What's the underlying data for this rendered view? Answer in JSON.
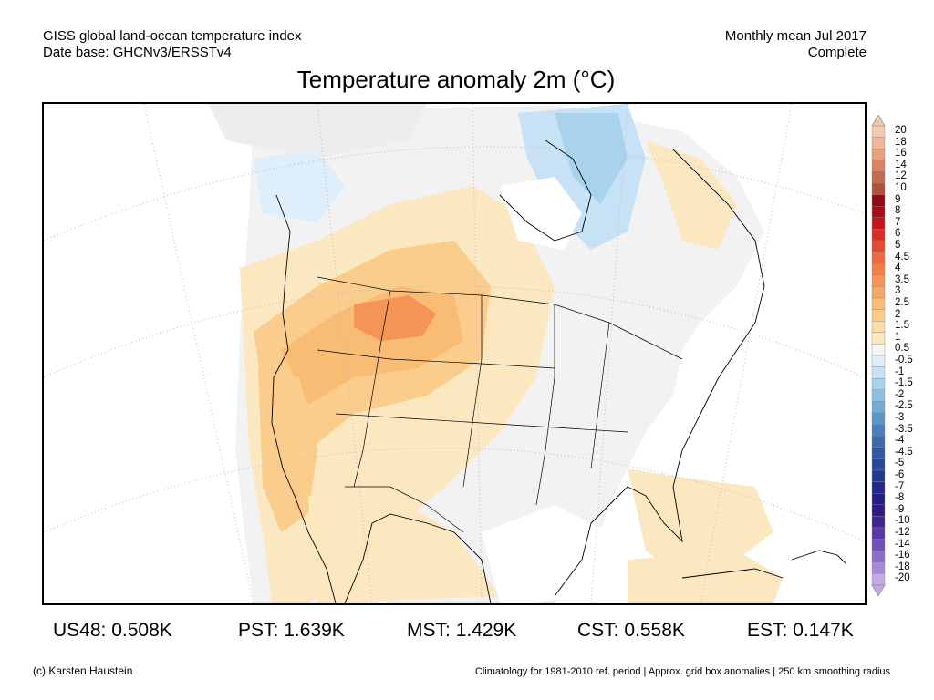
{
  "header": {
    "line1_left": "GISS global land-ocean temperature index",
    "line2_left": "Date base: GHCNv3/ERSSTv4",
    "line1_right": "Monthly mean Jul 2017",
    "line2_right": "Complete"
  },
  "title": "Temperature anomaly 2m (°C)",
  "colorbar": {
    "levels": [
      "20",
      "18",
      "16",
      "14",
      "12",
      "10",
      "9",
      "8",
      "7",
      "6",
      "5",
      "4.5",
      "4",
      "3.5",
      "3",
      "2.5",
      "2",
      "1.5",
      "1",
      "0.5",
      "-0.5",
      "-1",
      "-1.5",
      "-2",
      "-2.5",
      "-3",
      "-3.5",
      "-4",
      "-4.5",
      "-5",
      "-6",
      "-7",
      "-8",
      "-9",
      "-10",
      "-12",
      "-14",
      "-16",
      "-18",
      "-20"
    ],
    "colors": [
      "#f5c9ae",
      "#f0b697",
      "#e9a07d",
      "#d98462",
      "#c56b4d",
      "#b0513a",
      "#8e0a14",
      "#a80e18",
      "#c4141e",
      "#d92c26",
      "#e44a32",
      "#ec6a3e",
      "#f0804a",
      "#f49555",
      "#f7a862",
      "#f9bc75",
      "#fbcd8c",
      "#fbdda6",
      "#fbe8c0",
      "#f5f5f5",
      "#deeefa",
      "#c6e2f4",
      "#a9d2ec",
      "#8cc0e2",
      "#72abd6",
      "#5a95c9",
      "#4a7fbb",
      "#3b6aaf",
      "#2f58a3",
      "#274799",
      "#223893",
      "#23298c",
      "#241d85",
      "#2e1c80",
      "#3f2591",
      "#5838a6",
      "#7050bd",
      "#8a6ccd",
      "#a68ad9",
      "#c2aae4"
    ]
  },
  "stats": [
    {
      "label": "US48:",
      "value": "0.508K"
    },
    {
      "label": "PST:",
      "value": "1.639K"
    },
    {
      "label": "MST:",
      "value": "1.429K"
    },
    {
      "label": "CST:",
      "value": "0.558K"
    },
    {
      "label": "EST:",
      "value": "0.147K"
    }
  ],
  "footer": {
    "left": "(c) Karsten Haustein",
    "right": "Climatology for 1981-2010 ref. period | Approx. grid box anomalies | 250 km smoothing radius"
  }
}
